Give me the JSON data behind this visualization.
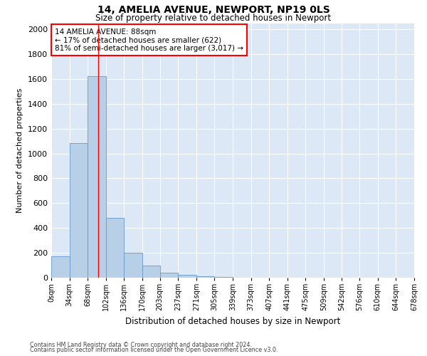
{
  "title1": "14, AMELIA AVENUE, NEWPORT, NP19 0LS",
  "title2": "Size of property relative to detached houses in Newport",
  "xlabel": "Distribution of detached houses by size in Newport",
  "ylabel": "Number of detached properties",
  "footnote1": "Contains HM Land Registry data © Crown copyright and database right 2024.",
  "footnote2": "Contains public sector information licensed under the Open Government Licence v3.0.",
  "annotation_title": "14 AMELIA AVENUE: 88sqm",
  "annotation_line1": "← 17% of detached houses are smaller (622)",
  "annotation_line2": "81% of semi-detached houses are larger (3,017) →",
  "bar_color": "#b8cfe8",
  "bar_edge_color": "#6699cc",
  "background_color": "#dce8f5",
  "red_line_x": 88,
  "bin_edges": [
    0,
    34,
    68,
    102,
    136,
    170,
    203,
    237,
    271,
    305,
    339,
    373,
    407,
    441,
    475,
    509,
    542,
    576,
    610,
    644,
    678
  ],
  "bar_values": [
    170,
    1085,
    1620,
    480,
    200,
    100,
    40,
    25,
    10,
    5,
    2,
    1,
    0,
    0,
    0,
    0,
    0,
    0,
    0,
    0
  ],
  "ylim": [
    0,
    2050
  ],
  "yticks": [
    0,
    200,
    400,
    600,
    800,
    1000,
    1200,
    1400,
    1600,
    1800,
    2000
  ],
  "tick_labels": [
    "0sqm",
    "34sqm",
    "68sqm",
    "102sqm",
    "136sqm",
    "170sqm",
    "203sqm",
    "237sqm",
    "271sqm",
    "305sqm",
    "339sqm",
    "373sqm",
    "407sqm",
    "441sqm",
    "475sqm",
    "509sqm",
    "542sqm",
    "576sqm",
    "610sqm",
    "644sqm",
    "678sqm"
  ]
}
